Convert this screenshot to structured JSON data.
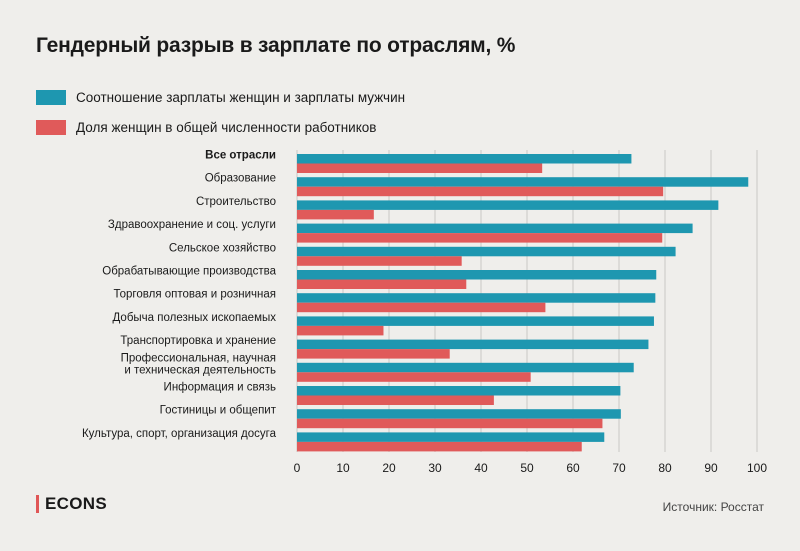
{
  "title": "Гендерный разрыв в зарплате по отраслям, %",
  "brand": "ECONS",
  "source": "Источник: Росстат",
  "colors": {
    "ratio": "#1e97b0",
    "share": "#e05a5a",
    "grid": "#c9c8c4"
  },
  "chart_data": {
    "type": "bar",
    "orientation": "horizontal",
    "title": "Гендерный разрыв в зарплате по отраслям, %",
    "categories": [
      "Все отрасли",
      "Образование",
      "Строительство",
      "Здравоохранение и соц. услуги",
      "Сельское хозяйство",
      "Обрабатывающие производства",
      "Торговля оптовая и розничная",
      "Добыча полезных ископаемых",
      "Транспортировка и хранение",
      "Профессиональная, научная\nи техническая деятельность",
      "Информация и связь",
      "Гостиницы и общепит",
      "Культура, спорт, организация досуга"
    ],
    "highlight_category": "Все отрасли",
    "series": [
      {
        "name": "Соотношение зарплаты женщин и зарплаты мужчин",
        "color": "#1e97b0",
        "values": [
          72.7,
          98.1,
          91.6,
          86.0,
          82.3,
          78.1,
          77.9,
          77.6,
          76.4,
          73.2,
          70.3,
          70.4,
          66.8
        ]
      },
      {
        "name": "Доля женщин в общей численности работников",
        "color": "#e05a5a",
        "values": [
          53.3,
          79.6,
          16.7,
          79.4,
          35.8,
          36.8,
          54.0,
          18.8,
          33.2,
          50.8,
          42.8,
          66.4,
          61.9
        ]
      }
    ],
    "xlim": [
      0,
      100
    ],
    "xticks": [
      0,
      10,
      20,
      30,
      40,
      50,
      60,
      70,
      80,
      90,
      100
    ],
    "grid": true,
    "legend_position": "top-left"
  }
}
